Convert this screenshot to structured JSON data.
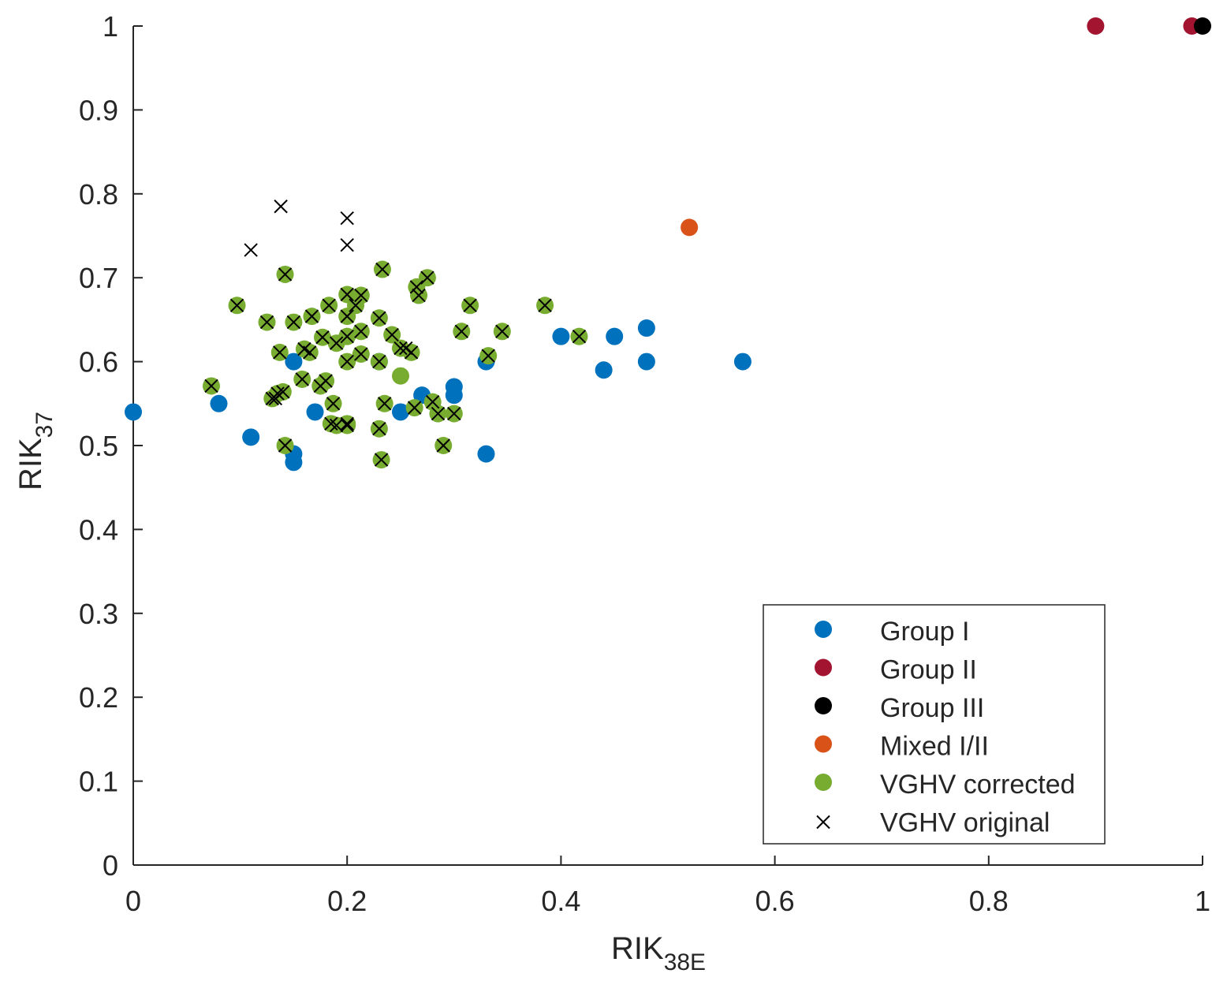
{
  "chart_data": {
    "type": "scatter",
    "title": "",
    "xlabel": "RIK",
    "xlabel_sub": "38E",
    "ylabel": "RIK",
    "ylabel_sub": "37",
    "xlim": [
      0,
      1
    ],
    "ylim": [
      0,
      1
    ],
    "x_ticks": [
      0,
      0.2,
      0.4,
      0.6,
      0.8,
      1
    ],
    "x_tick_labels": [
      "0",
      "0.2",
      "0.4",
      "0.6",
      "0.8",
      "1"
    ],
    "y_ticks": [
      0,
      0.1,
      0.2,
      0.3,
      0.4,
      0.5,
      0.6,
      0.7,
      0.8,
      0.9,
      1
    ],
    "y_tick_labels": [
      "0",
      "0.1",
      "0.2",
      "0.3",
      "0.4",
      "0.5",
      "0.6",
      "0.7",
      "0.8",
      "0.9",
      "1"
    ],
    "grid": false,
    "legend_position": "bottom-right",
    "series": [
      {
        "name": "Group I",
        "marker": "circle",
        "color": "#0072BD",
        "x": [
          0.0,
          0.08,
          0.11,
          0.15,
          0.15,
          0.15,
          0.17,
          0.23,
          0.25,
          0.27,
          0.3,
          0.3,
          0.33,
          0.33,
          0.4,
          0.44,
          0.45,
          0.48,
          0.48,
          0.57
        ],
        "y": [
          0.54,
          0.55,
          0.51,
          0.6,
          0.49,
          0.48,
          0.54,
          0.6,
          0.54,
          0.56,
          0.57,
          0.56,
          0.6,
          0.49,
          0.63,
          0.59,
          0.63,
          0.64,
          0.6,
          0.6
        ]
      },
      {
        "name": "Group II",
        "marker": "circle",
        "color": "#A2142F",
        "x": [
          0.9,
          0.99
        ],
        "y": [
          1.0,
          1.0
        ]
      },
      {
        "name": "Group III",
        "marker": "circle",
        "color": "#000000",
        "x": [
          1.0
        ],
        "y": [
          1.0
        ]
      },
      {
        "name": "Mixed I/II",
        "marker": "circle",
        "color": "#D95319",
        "x": [
          0.52
        ],
        "y": [
          0.76
        ]
      },
      {
        "name": "VGHV corrected",
        "marker": "circle",
        "color": "#77AC30",
        "x": [
          0.073,
          0.097,
          0.125,
          0.13,
          0.135,
          0.137,
          0.14,
          0.142,
          0.142,
          0.15,
          0.158,
          0.16,
          0.165,
          0.167,
          0.175,
          0.177,
          0.18,
          0.183,
          0.185,
          0.187,
          0.19,
          0.19,
          0.2,
          0.2,
          0.2,
          0.2,
          0.2,
          0.2,
          0.208,
          0.213,
          0.213,
          0.213,
          0.23,
          0.23,
          0.23,
          0.232,
          0.233,
          0.235,
          0.242,
          0.25,
          0.25,
          0.26,
          0.263,
          0.265,
          0.267,
          0.275,
          0.28,
          0.285,
          0.29,
          0.3,
          0.307,
          0.315,
          0.332,
          0.345,
          0.385,
          0.417
        ],
        "y": [
          0.571,
          0.667,
          0.647,
          0.556,
          0.562,
          0.611,
          0.564,
          0.5,
          0.704,
          0.647,
          0.579,
          0.615,
          0.611,
          0.654,
          0.571,
          0.629,
          0.577,
          0.667,
          0.526,
          0.55,
          0.524,
          0.622,
          0.68,
          0.654,
          0.63,
          0.6,
          0.526,
          0.524,
          0.667,
          0.679,
          0.636,
          0.609,
          0.652,
          0.6,
          0.52,
          0.483,
          0.71,
          0.55,
          0.632,
          0.616,
          0.583,
          0.611,
          0.545,
          0.689,
          0.679,
          0.7,
          0.552,
          0.538,
          0.5,
          0.538,
          0.636,
          0.667,
          0.607,
          0.636,
          0.667,
          0.63
        ]
      },
      {
        "name": "VGHV original",
        "marker": "x",
        "color": "#000000",
        "x": [
          0.073,
          0.097,
          0.11,
          0.125,
          0.13,
          0.133,
          0.135,
          0.137,
          0.138,
          0.14,
          0.142,
          0.142,
          0.15,
          0.158,
          0.16,
          0.165,
          0.167,
          0.175,
          0.177,
          0.18,
          0.183,
          0.185,
          0.187,
          0.19,
          0.19,
          0.2,
          0.2,
          0.2,
          0.2,
          0.2,
          0.2,
          0.2,
          0.2,
          0.208,
          0.213,
          0.213,
          0.213,
          0.23,
          0.23,
          0.23,
          0.232,
          0.233,
          0.235,
          0.242,
          0.25,
          0.255,
          0.26,
          0.263,
          0.265,
          0.267,
          0.275,
          0.28,
          0.285,
          0.29,
          0.3,
          0.307,
          0.315,
          0.332,
          0.345,
          0.385,
          0.417
        ],
        "y": [
          0.571,
          0.667,
          0.733,
          0.647,
          0.556,
          0.556,
          0.562,
          0.611,
          0.785,
          0.564,
          0.5,
          0.704,
          0.647,
          0.579,
          0.615,
          0.611,
          0.654,
          0.571,
          0.629,
          0.577,
          0.667,
          0.526,
          0.55,
          0.524,
          0.622,
          0.771,
          0.739,
          0.68,
          0.654,
          0.63,
          0.6,
          0.526,
          0.524,
          0.667,
          0.679,
          0.636,
          0.609,
          0.652,
          0.6,
          0.52,
          0.483,
          0.71,
          0.55,
          0.632,
          0.616,
          0.616,
          0.611,
          0.545,
          0.689,
          0.679,
          0.7,
          0.552,
          0.538,
          0.5,
          0.538,
          0.636,
          0.667,
          0.607,
          0.636,
          0.667,
          0.63
        ]
      }
    ]
  }
}
